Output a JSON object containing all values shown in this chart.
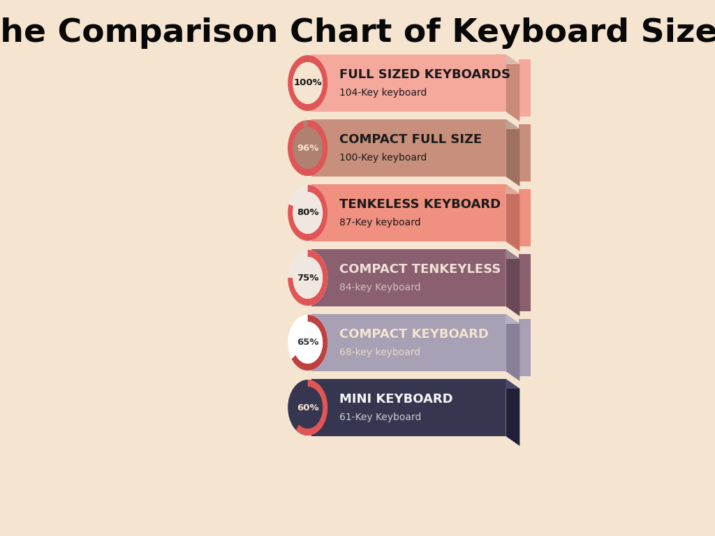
{
  "title": "The Comparison Chart of Keyboard Sizes",
  "background_color": "#f5e4d0",
  "title_fontsize": 34,
  "entries": [
    {
      "percent": "100%",
      "name": "FULL SIZED KEYBOARDS",
      "subname": "104-Key keyboard",
      "bar_color": "#f5a89c",
      "side_color": "#c98a7a",
      "top_color": "#deb8a8",
      "text_color": "#1a1a1a",
      "sub_color": "#1a1a1a",
      "circle_fill": "#f5e4d0",
      "circle_ring": "#e05555",
      "pct_color": "#1a1a1a",
      "pct_value": 1.0
    },
    {
      "percent": "96%",
      "name": "COMPACT FULL SIZE",
      "subname": "100-Key keyboard",
      "bar_color": "#c8907c",
      "side_color": "#a07060",
      "top_color": "#c0a090",
      "text_color": "#1a1a1a",
      "sub_color": "#1a1a1a",
      "circle_fill": "#b08070",
      "circle_ring": "#e05555",
      "pct_color": "#f5e4d0",
      "pct_value": 0.96
    },
    {
      "percent": "80%",
      "name": "TENKELESS KEYBOARD",
      "subname": "87-Key keyboard",
      "bar_color": "#f09080",
      "side_color": "#c87060",
      "top_color": "#e0a898",
      "text_color": "#1a1a1a",
      "sub_color": "#1a1a1a",
      "circle_fill": "#f0e8e0",
      "circle_ring": "#e05555",
      "pct_color": "#1a1a1a",
      "pct_value": 0.8
    },
    {
      "percent": "75%",
      "name": "COMPACT TENKEYLESS",
      "subname": "84-key Keyboard",
      "bar_color": "#8a6070",
      "side_color": "#6a4858",
      "top_color": "#9a8088",
      "text_color": "#f0e0d8",
      "sub_color": "#d0c0c0",
      "circle_fill": "#f0e8e0",
      "circle_ring": "#e05555",
      "pct_color": "#1a1a1a",
      "pct_value": 0.75
    },
    {
      "percent": "65%",
      "name": "COMPACT KEYBOARD",
      "subname": "68-key keyboard",
      "bar_color": "#a8a0b4",
      "side_color": "#888098",
      "top_color": "#b8b0c4",
      "text_color": "#f5e4d0",
      "sub_color": "#e8d8c8",
      "circle_fill": "#ffffff",
      "circle_ring": "#c04040",
      "pct_color": "#333333",
      "pct_value": 0.65
    },
    {
      "percent": "60%",
      "name": "MINI KEYBOARD",
      "subname": "61-Key Keyboard",
      "bar_color": "#363650",
      "side_color": "#202038",
      "top_color": "#484868",
      "text_color": "#f5f5f5",
      "sub_color": "#cccccc",
      "circle_fill": "#363650",
      "circle_ring": "#e05555",
      "pct_color": "#f5e4d0",
      "pct_value": 0.6
    }
  ]
}
